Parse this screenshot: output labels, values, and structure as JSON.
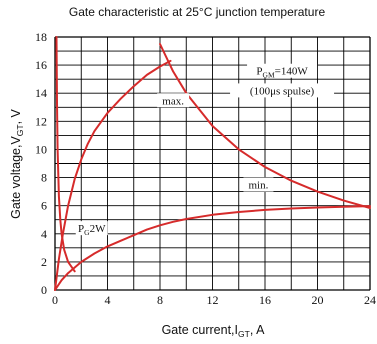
{
  "chart_data": {
    "type": "line",
    "title": "Gate characteristic at 25°C junction temperature",
    "xlabel": {
      "main": "Gate current,I",
      "sub": "GT",
      "unit": ",  A"
    },
    "ylabel": {
      "main": "Gate voltage,V",
      "sub": "GT",
      "unit": ",  V"
    },
    "xlim": [
      0,
      24
    ],
    "ylim": [
      0,
      18
    ],
    "xticks": [
      0,
      4,
      8,
      12,
      16,
      20,
      24
    ],
    "yticks": [
      0,
      2,
      4,
      6,
      8,
      10,
      12,
      14,
      16,
      18
    ],
    "grid": true,
    "colors": {
      "curve": "#d62b2b",
      "grid": "#000000",
      "text": "#111111"
    },
    "series": [
      {
        "name": "max.",
        "x": [
          0,
          0.3,
          0.6,
          1.0,
          1.5,
          2.0,
          2.5,
          3.0,
          4.0,
          5.0,
          6.0,
          7.0,
          8.0,
          8.8
        ],
        "y": [
          0,
          2.2,
          4.0,
          6.0,
          7.9,
          9.3,
          10.4,
          11.3,
          12.6,
          13.6,
          14.5,
          15.3,
          15.9,
          16.3
        ]
      },
      {
        "name": "min.",
        "x": [
          0,
          0.5,
          1.0,
          2.0,
          3.0,
          4.0,
          5.0,
          6.0,
          7.0,
          8.0,
          9.0,
          10.0,
          12.0,
          14.0,
          16.0,
          18.0,
          20.0,
          22.0,
          24.0
        ],
        "y": [
          0,
          0.7,
          1.2,
          2.0,
          2.6,
          3.1,
          3.5,
          3.9,
          4.3,
          4.6,
          4.85,
          5.05,
          5.35,
          5.55,
          5.7,
          5.8,
          5.87,
          5.92,
          5.97
        ]
      },
      {
        "name": "PGM=140W",
        "x": [
          8.0,
          9.0,
          10.0,
          12.0,
          14.0,
          16.0,
          18.0,
          20.0,
          22.0,
          24.0
        ],
        "y": [
          17.5,
          15.556,
          14.0,
          11.667,
          10.0,
          8.75,
          7.778,
          7.0,
          6.364,
          5.833
        ]
      },
      {
        "name": "PG=2W",
        "x": [
          0.111,
          0.15,
          0.2,
          0.3,
          0.4,
          0.5,
          0.7,
          1.0,
          1.5
        ],
        "y": [
          18,
          13.333,
          10.0,
          6.667,
          5.0,
          4.0,
          2.857,
          2.0,
          1.333
        ]
      }
    ],
    "annotations": {
      "pgm_main": "P",
      "pgm_sub": "GM",
      "pgm_rest": "=140W",
      "pulse": "(100μs spulse)",
      "max": "max.",
      "min": "min.",
      "pg_main": "P",
      "pg_sub": "G",
      "pg_rest": "2W"
    }
  }
}
